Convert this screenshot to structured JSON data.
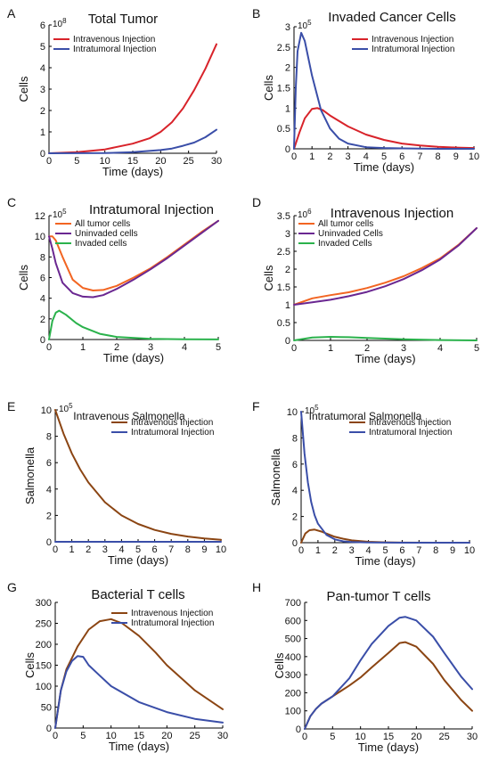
{
  "colors": {
    "red": "#d8232a",
    "blue": "#3a4ea8",
    "orange": "#f26522",
    "purple": "#6a2791",
    "green": "#2bb24c",
    "brown": "#8b4513"
  },
  "chart_data": [
    {
      "panel": "A",
      "type": "line",
      "title": "Total Tumor",
      "xlabel": "Time (days)",
      "ylabel": "Cells",
      "multiplier": "10^8",
      "xlim": [
        0,
        30
      ],
      "ylim": [
        0,
        6
      ],
      "xticks": [
        0,
        5,
        10,
        15,
        20,
        25,
        30
      ],
      "yticks": [
        0,
        1,
        2,
        3,
        4,
        5,
        6
      ],
      "legend": "top-left",
      "series": [
        {
          "name": "Intravenous Injection",
          "color": "red",
          "x": [
            0,
            5,
            10,
            15,
            18,
            20,
            22,
            24,
            26,
            28,
            30
          ],
          "y": [
            0,
            0.05,
            0.18,
            0.45,
            0.7,
            1.0,
            1.45,
            2.1,
            2.95,
            3.95,
            5.1
          ]
        },
        {
          "name": "Intratumoral Injection",
          "color": "blue",
          "x": [
            0,
            10,
            15,
            20,
            22,
            24,
            26,
            28,
            30
          ],
          "y": [
            0,
            0.01,
            0.05,
            0.15,
            0.22,
            0.35,
            0.5,
            0.75,
            1.1
          ]
        }
      ]
    },
    {
      "panel": "B",
      "type": "line",
      "title": "Invaded Cancer Cells",
      "xlabel": "Time (days)",
      "ylabel": "Cells",
      "multiplier": "10^5",
      "xlim": [
        0,
        10
      ],
      "ylim": [
        0,
        3
      ],
      "xticks": [
        0,
        1,
        2,
        3,
        4,
        5,
        6,
        7,
        8,
        9,
        10
      ],
      "yticks": [
        0,
        0.5,
        1,
        1.5,
        2,
        2.5,
        3
      ],
      "legend": "top-right",
      "series": [
        {
          "name": "Intravenous Injection",
          "color": "red",
          "x": [
            0,
            0.3,
            0.6,
            1.0,
            1.3,
            1.6,
            2,
            3,
            4,
            5,
            6,
            7,
            8,
            9,
            10
          ],
          "y": [
            0,
            0.4,
            0.75,
            0.98,
            1.0,
            0.95,
            0.82,
            0.55,
            0.35,
            0.22,
            0.13,
            0.08,
            0.05,
            0.03,
            0.02
          ]
        },
        {
          "name": "Intratumoral Injection",
          "color": "blue",
          "x": [
            0,
            0.1,
            0.2,
            0.4,
            0.6,
            1.0,
            1.5,
            2,
            2.5,
            3,
            4,
            5,
            6,
            8,
            10
          ],
          "y": [
            0,
            1.5,
            2.4,
            2.85,
            2.65,
            1.8,
            0.95,
            0.5,
            0.25,
            0.13,
            0.04,
            0.02,
            0.01,
            0,
            0
          ]
        }
      ]
    },
    {
      "panel": "C",
      "type": "line",
      "title": "Intratumoral Injection",
      "xlabel": "Time (days)",
      "ylabel": "Cells",
      "multiplier": "10^5",
      "xlim": [
        0,
        5
      ],
      "ylim": [
        0,
        12
      ],
      "xticks": [
        0,
        1,
        2,
        3,
        4,
        5
      ],
      "yticks": [
        0,
        2,
        4,
        6,
        8,
        10,
        12
      ],
      "legend": "top-left",
      "series": [
        {
          "name": "All tumor cells",
          "color": "orange",
          "x": [
            0,
            0.1,
            0.2,
            0.4,
            0.7,
            1.0,
            1.3,
            1.6,
            2.0,
            2.5,
            3,
            3.5,
            4,
            4.5,
            5
          ],
          "y": [
            10,
            10,
            9.6,
            8.0,
            5.8,
            5.0,
            4.75,
            4.8,
            5.2,
            6.0,
            6.9,
            8.0,
            9.2,
            10.4,
            11.5
          ]
        },
        {
          "name": "Uninvaded cells",
          "color": "purple",
          "x": [
            0,
            0.1,
            0.2,
            0.4,
            0.7,
            1.0,
            1.3,
            1.6,
            2.0,
            2.5,
            3,
            3.5,
            4,
            4.5,
            5
          ],
          "y": [
            10,
            8.8,
            7.4,
            5.5,
            4.5,
            4.15,
            4.1,
            4.3,
            4.9,
            5.8,
            6.8,
            7.9,
            9.1,
            10.3,
            11.5
          ]
        },
        {
          "name": "Invaded cells",
          "color": "green",
          "x": [
            0,
            0.1,
            0.2,
            0.3,
            0.5,
            0.8,
            1.0,
            1.5,
            2,
            3,
            4,
            5
          ],
          "y": [
            0,
            1.8,
            2.6,
            2.8,
            2.4,
            1.6,
            1.2,
            0.55,
            0.25,
            0.06,
            0.02,
            0.01
          ]
        }
      ]
    },
    {
      "panel": "D",
      "type": "line",
      "title": "Intravenous Injection",
      "xlabel": "Time (days)",
      "ylabel": "Cells",
      "multiplier": "10^6",
      "xlim": [
        0,
        5
      ],
      "ylim": [
        0,
        3.5
      ],
      "xticks": [
        0,
        1,
        2,
        3,
        4,
        5
      ],
      "yticks": [
        0,
        0.5,
        1,
        1.5,
        2,
        2.5,
        3,
        3.5
      ],
      "legend": "top-left",
      "series": [
        {
          "name": "All tumor cells",
          "color": "orange",
          "x": [
            0,
            0.5,
            1.0,
            1.5,
            2.0,
            2.5,
            3.0,
            3.5,
            4.0,
            4.5,
            5.0
          ],
          "y": [
            1.0,
            1.18,
            1.27,
            1.35,
            1.47,
            1.62,
            1.8,
            2.03,
            2.3,
            2.68,
            3.15
          ]
        },
        {
          "name": "Uninvaded Cells",
          "color": "purple",
          "x": [
            0,
            0.5,
            1.0,
            1.5,
            2.0,
            2.5,
            3.0,
            3.5,
            4.0,
            4.5,
            5.0
          ],
          "y": [
            1.0,
            1.07,
            1.14,
            1.24,
            1.36,
            1.52,
            1.72,
            1.97,
            2.27,
            2.66,
            3.15
          ]
        },
        {
          "name": "Invaded Cells",
          "color": "green",
          "x": [
            0,
            0.5,
            1.0,
            1.5,
            2.0,
            3.0,
            4.0,
            5.0
          ],
          "y": [
            0,
            0.08,
            0.1,
            0.09,
            0.07,
            0.03,
            0.01,
            0
          ]
        }
      ]
    },
    {
      "panel": "E",
      "type": "line",
      "title": "Intravenous Salmonella",
      "xlabel": "Time (days)",
      "ylabel": "Salmonella",
      "multiplier": "10^5",
      "xlim": [
        0,
        10
      ],
      "ylim": [
        0,
        10
      ],
      "xticks": [
        0,
        1,
        2,
        3,
        4,
        5,
        6,
        7,
        8,
        9,
        10
      ],
      "yticks": [
        0,
        2,
        4,
        6,
        8,
        10
      ],
      "legend": "top-right",
      "series": [
        {
          "name": "Intravenous Injection",
          "color": "brown",
          "x": [
            0,
            0.5,
            1,
            1.5,
            2,
            3,
            4,
            5,
            6,
            7,
            8,
            9,
            10
          ],
          "y": [
            10,
            8.2,
            6.7,
            5.5,
            4.5,
            3.0,
            2.0,
            1.35,
            0.9,
            0.6,
            0.4,
            0.25,
            0.15
          ]
        },
        {
          "name": "Intratumoral Injection",
          "color": "blue",
          "x": [
            0,
            10
          ],
          "y": [
            0,
            0
          ]
        }
      ]
    },
    {
      "panel": "F",
      "type": "line",
      "title": "Intratumoral Salmonella",
      "xlabel": "Time (days)",
      "ylabel": "Salmonella",
      "multiplier": "10^5",
      "xlim": [
        0,
        10
      ],
      "ylim": [
        0,
        10
      ],
      "xticks": [
        0,
        1,
        2,
        3,
        4,
        5,
        6,
        7,
        8,
        9,
        10
      ],
      "yticks": [
        0,
        2,
        4,
        6,
        8,
        10
      ],
      "legend": "top-right",
      "series": [
        {
          "name": "Intravenous Injection",
          "color": "brown",
          "x": [
            0,
            0.25,
            0.5,
            0.8,
            1.2,
            1.6,
            2,
            2.5,
            3,
            4,
            5,
            6,
            8,
            10
          ],
          "y": [
            0,
            0.7,
            0.95,
            1.0,
            0.85,
            0.65,
            0.45,
            0.3,
            0.18,
            0.07,
            0.03,
            0.01,
            0,
            0
          ]
        },
        {
          "name": "Intratumoral Injection",
          "color": "blue",
          "x": [
            0,
            0.2,
            0.4,
            0.6,
            0.8,
            1.0,
            1.5,
            2,
            2.5,
            3,
            4,
            5,
            6,
            8,
            10
          ],
          "y": [
            10,
            6.8,
            4.6,
            3.1,
            2.1,
            1.45,
            0.6,
            0.25,
            0.1,
            0.05,
            0.02,
            0.01,
            0,
            0,
            0
          ]
        }
      ]
    },
    {
      "panel": "G",
      "type": "line",
      "title": "Bacterial T cells",
      "xlabel": "Time (days)",
      "ylabel": "Cells",
      "xlim": [
        0,
        30
      ],
      "ylim": [
        0,
        300
      ],
      "xticks": [
        0,
        5,
        10,
        15,
        20,
        25,
        30
      ],
      "yticks": [
        0,
        50,
        100,
        150,
        200,
        250,
        300
      ],
      "legend": "top-right",
      "series": [
        {
          "name": "Intravenous Injection",
          "color": "brown",
          "x": [
            0,
            1,
            2,
            4,
            6,
            8,
            10,
            12,
            15,
            18,
            20,
            25,
            30
          ],
          "y": [
            0,
            90,
            140,
            195,
            235,
            255,
            260,
            250,
            220,
            180,
            150,
            90,
            45
          ]
        },
        {
          "name": "Intratumoral Injection",
          "color": "blue",
          "x": [
            0,
            1,
            2,
            3,
            4,
            5,
            6,
            8,
            10,
            15,
            20,
            25,
            30
          ],
          "y": [
            0,
            90,
            135,
            160,
            172,
            170,
            150,
            125,
            100,
            62,
            38,
            22,
            13
          ]
        }
      ]
    },
    {
      "panel": "H",
      "type": "line",
      "title": "Pan-tumor T cells",
      "xlabel": "Time (days)",
      "ylabel": "Cells",
      "xlim": [
        0,
        30
      ],
      "ylim": [
        0,
        700
      ],
      "xticks": [
        0,
        5,
        10,
        15,
        20,
        25,
        30
      ],
      "yticks": [
        0,
        100,
        200,
        300,
        400,
        500,
        600,
        700
      ],
      "series": [
        {
          "color": "brown",
          "x": [
            0,
            1,
            2,
            3,
            5,
            8,
            10,
            12,
            15,
            17,
            18,
            20,
            23,
            25,
            28,
            30
          ],
          "y": [
            0,
            70,
            110,
            140,
            180,
            240,
            285,
            340,
            420,
            475,
            480,
            455,
            360,
            270,
            160,
            100
          ]
        },
        {
          "color": "blue",
          "x": [
            0,
            1,
            2,
            3,
            5,
            8,
            10,
            12,
            15,
            17,
            18,
            20,
            23,
            25,
            28,
            30
          ],
          "y": [
            0,
            70,
            110,
            140,
            180,
            280,
            380,
            470,
            570,
            615,
            620,
            600,
            510,
            420,
            290,
            220
          ]
        }
      ]
    }
  ]
}
